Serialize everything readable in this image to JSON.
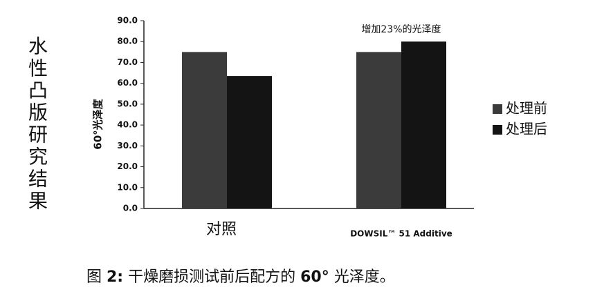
{
  "chart_data": {
    "type": "bar",
    "side_title": "水性凸版研究结果",
    "ylabel": "60°光泽度",
    "annotation": "增加23%的光泽度",
    "categories": [
      "对照",
      "DOWSIL™ 51 Additive"
    ],
    "series": [
      {
        "name": "处理前",
        "color": "#3b3b3b",
        "values": [
          75,
          75
        ]
      },
      {
        "name": "处理后",
        "color": "#141414",
        "values": [
          63.5,
          80
        ]
      }
    ],
    "ylim": [
      0,
      90
    ],
    "yticks": [
      {
        "value": 0,
        "label": "0.0"
      },
      {
        "value": 10,
        "label": "10.0"
      },
      {
        "value": 20,
        "label": "20.0"
      },
      {
        "value": 30,
        "label": "30.0"
      },
      {
        "value": 40,
        "label": "40.0"
      },
      {
        "value": 50,
        "label": "50.0"
      },
      {
        "value": 60,
        "label": "60.0"
      },
      {
        "value": 70,
        "label": "70.0"
      },
      {
        "value": 80,
        "label": "80.0"
      },
      {
        "value": 90,
        "label": "90.0"
      }
    ],
    "legend": "right",
    "caption": [
      {
        "text": "图 ",
        "bold": false
      },
      {
        "text": "2:",
        "bold": true
      },
      {
        "text": " 干燥磨损测试前后配方的 ",
        "bold": false
      },
      {
        "text": "60°",
        "bold": true
      },
      {
        "text": " 光泽度。",
        "bold": false
      }
    ]
  }
}
